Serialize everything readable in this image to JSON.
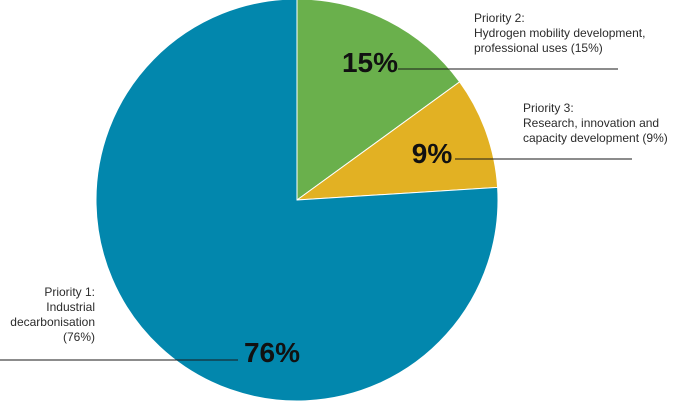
{
  "chart_data": {
    "type": "pie",
    "title": "",
    "slices": [
      {
        "key": "p2",
        "label_lines": [
          "Priority 2:",
          "Hydrogen mobility development,",
          "professional uses (15%)"
        ],
        "value": 15,
        "percent_label": "15%",
        "color": "#6ab04c"
      },
      {
        "key": "p3",
        "label_lines": [
          "Priority 3:",
          "Research, innovation and",
          "capacity development (9%)"
        ],
        "value": 9,
        "percent_label": "9%",
        "color": "#e2b123"
      },
      {
        "key": "p1",
        "label_lines": [
          "Priority 1:",
          "Industrial",
          "decarbonisation",
          "(76%)"
        ],
        "value": 76,
        "percent_label": "76%",
        "color": "#0287ad"
      }
    ],
    "start_angle": "12 o'clock",
    "direction": "clockwise"
  }
}
